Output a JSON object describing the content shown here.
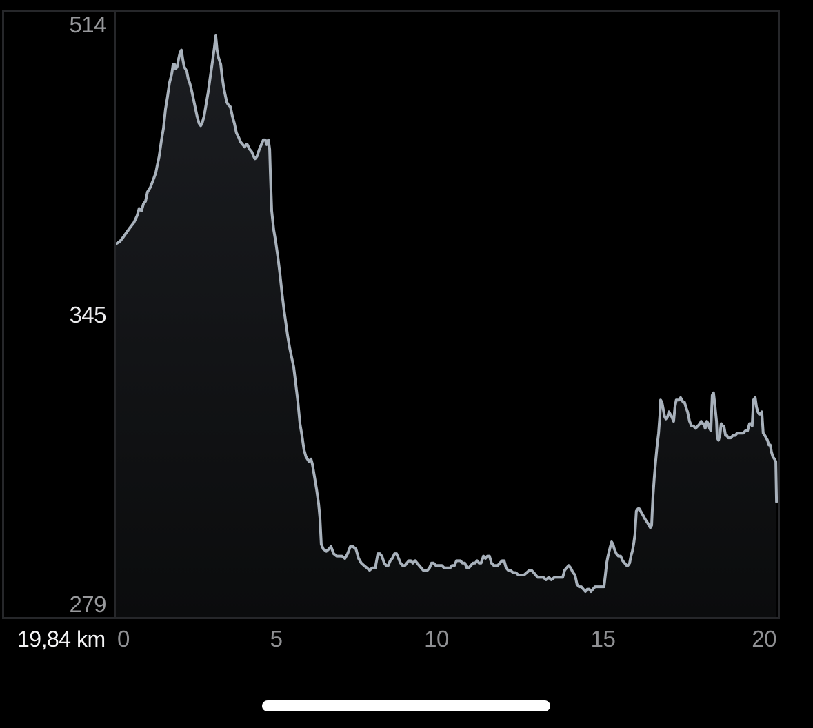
{
  "chart": {
    "y_axis_labels": {
      "max": "514",
      "mid": "345",
      "min": "279"
    },
    "x_ticks": [
      "0",
      "5",
      "10",
      "15",
      "20"
    ],
    "footer": {
      "distance_label": "19,84 km"
    }
  },
  "colors": {
    "background": "#000000",
    "frame": "#26272a",
    "line": "#a8b1bb",
    "fill_top": "#1b1d21",
    "fill_bottom": "#0b0c0d",
    "label_dim": "#98999c",
    "label_bright": "#ececee",
    "tick_label": "#8f9093",
    "distance_text": "#f5f5f6",
    "home_indicator": "#ffffff"
  },
  "chart_data": {
    "type": "area",
    "x_unit": "km",
    "y_unit": "m",
    "x_range": [
      0,
      19.88
    ],
    "y_range": [
      279,
      514
    ],
    "x_tick_values": [
      0,
      5,
      10,
      15,
      20
    ],
    "y_tick_values": [
      514,
      345,
      279
    ],
    "total_distance_km": 19.84,
    "max_elevation_m": 514,
    "mid_label_elevation_m": 345,
    "min_elevation_m": 279,
    "grid": false,
    "legend": false,
    "profile": [
      [
        0.0,
        426
      ],
      [
        0.12,
        427
      ],
      [
        0.23,
        429
      ],
      [
        0.33,
        431
      ],
      [
        0.43,
        433
      ],
      [
        0.54,
        435
      ],
      [
        0.64,
        438
      ],
      [
        0.7,
        441
      ],
      [
        0.77,
        440
      ],
      [
        0.83,
        443
      ],
      [
        0.89,
        444
      ],
      [
        0.95,
        448
      ],
      [
        1.04,
        450
      ],
      [
        1.12,
        453
      ],
      [
        1.2,
        456
      ],
      [
        1.24,
        459
      ],
      [
        1.3,
        463
      ],
      [
        1.37,
        470
      ],
      [
        1.43,
        475
      ],
      [
        1.49,
        483
      ],
      [
        1.55,
        488
      ],
      [
        1.61,
        494
      ],
      [
        1.68,
        498
      ],
      [
        1.72,
        502
      ],
      [
        1.76,
        502
      ],
      [
        1.8,
        500
      ],
      [
        1.84,
        501
      ],
      [
        1.88,
        504
      ],
      [
        1.93,
        507
      ],
      [
        1.97,
        508
      ],
      [
        2.01,
        504
      ],
      [
        2.05,
        501
      ],
      [
        2.09,
        500
      ],
      [
        2.13,
        499
      ],
      [
        2.17,
        496
      ],
      [
        2.22,
        494
      ],
      [
        2.26,
        492
      ],
      [
        2.32,
        488
      ],
      [
        2.38,
        484
      ],
      [
        2.44,
        480
      ],
      [
        2.5,
        477
      ],
      [
        2.55,
        476
      ],
      [
        2.59,
        477
      ],
      [
        2.65,
        480
      ],
      [
        2.71,
        485
      ],
      [
        2.77,
        490
      ],
      [
        2.84,
        497
      ],
      [
        2.88,
        501
      ],
      [
        2.92,
        505
      ],
      [
        2.96,
        509
      ],
      [
        3.0,
        514
      ],
      [
        3.04,
        508
      ],
      [
        3.08,
        505
      ],
      [
        3.15,
        502
      ],
      [
        3.19,
        497
      ],
      [
        3.23,
        493
      ],
      [
        3.27,
        490
      ],
      [
        3.33,
        486
      ],
      [
        3.37,
        485
      ],
      [
        3.44,
        484
      ],
      [
        3.5,
        480
      ],
      [
        3.56,
        477
      ],
      [
        3.62,
        473
      ],
      [
        3.69,
        471
      ],
      [
        3.75,
        469
      ],
      [
        3.81,
        468
      ],
      [
        3.87,
        467
      ],
      [
        3.91,
        468
      ],
      [
        3.95,
        468
      ],
      [
        4.02,
        466
      ],
      [
        4.08,
        465
      ],
      [
        4.14,
        463
      ],
      [
        4.18,
        462
      ],
      [
        4.24,
        463
      ],
      [
        4.31,
        466
      ],
      [
        4.37,
        468
      ],
      [
        4.43,
        470
      ],
      [
        4.49,
        470
      ],
      [
        4.53,
        468
      ],
      [
        4.58,
        470
      ],
      [
        4.62,
        466
      ],
      [
        4.64,
        456
      ],
      [
        4.68,
        440
      ],
      [
        4.74,
        432
      ],
      [
        4.8,
        427
      ],
      [
        4.87,
        420
      ],
      [
        4.93,
        413
      ],
      [
        4.99,
        405
      ],
      [
        5.05,
        398
      ],
      [
        5.11,
        392
      ],
      [
        5.16,
        387
      ],
      [
        5.22,
        382
      ],
      [
        5.28,
        378
      ],
      [
        5.34,
        374
      ],
      [
        5.4,
        367
      ],
      [
        5.47,
        359
      ],
      [
        5.53,
        350
      ],
      [
        5.59,
        345
      ],
      [
        5.65,
        339
      ],
      [
        5.71,
        336
      ],
      [
        5.8,
        334
      ],
      [
        5.86,
        335
      ],
      [
        5.9,
        333
      ],
      [
        5.96,
        328
      ],
      [
        6.03,
        322
      ],
      [
        6.09,
        316
      ],
      [
        6.13,
        310
      ],
      [
        6.17,
        299
      ],
      [
        6.23,
        297
      ],
      [
        6.32,
        296
      ],
      [
        6.4,
        297
      ],
      [
        6.46,
        298
      ],
      [
        6.54,
        295
      ],
      [
        6.63,
        294
      ],
      [
        6.71,
        294
      ],
      [
        6.79,
        294
      ],
      [
        6.88,
        293
      ],
      [
        6.96,
        295
      ],
      [
        7.04,
        298
      ],
      [
        7.12,
        298
      ],
      [
        7.21,
        297
      ],
      [
        7.29,
        293
      ],
      [
        7.37,
        291
      ],
      [
        7.45,
        290
      ],
      [
        7.54,
        289
      ],
      [
        7.62,
        288
      ],
      [
        7.7,
        289
      ],
      [
        7.79,
        289
      ],
      [
        7.87,
        295
      ],
      [
        7.93,
        295
      ],
      [
        7.99,
        294
      ],
      [
        8.06,
        291
      ],
      [
        8.12,
        290
      ],
      [
        8.18,
        290
      ],
      [
        8.24,
        292
      ],
      [
        8.3,
        293
      ],
      [
        8.37,
        295
      ],
      [
        8.43,
        295
      ],
      [
        8.49,
        293
      ],
      [
        8.55,
        291
      ],
      [
        8.61,
        290
      ],
      [
        8.68,
        290
      ],
      [
        8.74,
        291
      ],
      [
        8.8,
        292
      ],
      [
        8.86,
        292
      ],
      [
        8.92,
        291
      ],
      [
        8.99,
        292
      ],
      [
        9.05,
        291
      ],
      [
        9.11,
        290
      ],
      [
        9.17,
        289
      ],
      [
        9.23,
        288
      ],
      [
        9.3,
        288
      ],
      [
        9.36,
        288
      ],
      [
        9.42,
        289
      ],
      [
        9.48,
        291
      ],
      [
        9.54,
        291
      ],
      [
        9.61,
        290
      ],
      [
        9.67,
        290
      ],
      [
        9.73,
        290
      ],
      [
        9.79,
        290
      ],
      [
        9.86,
        289
      ],
      [
        9.92,
        289
      ],
      [
        9.98,
        289
      ],
      [
        10.04,
        289
      ],
      [
        10.1,
        290
      ],
      [
        10.17,
        290
      ],
      [
        10.23,
        292
      ],
      [
        10.29,
        292
      ],
      [
        10.35,
        292
      ],
      [
        10.41,
        291
      ],
      [
        10.48,
        291
      ],
      [
        10.54,
        289
      ],
      [
        10.6,
        289
      ],
      [
        10.66,
        290
      ],
      [
        10.73,
        291
      ],
      [
        10.79,
        291
      ],
      [
        10.85,
        292
      ],
      [
        10.91,
        291
      ],
      [
        10.97,
        291
      ],
      [
        11.04,
        294
      ],
      [
        11.1,
        293
      ],
      [
        11.16,
        294
      ],
      [
        11.22,
        294
      ],
      [
        11.28,
        291
      ],
      [
        11.35,
        290
      ],
      [
        11.41,
        290
      ],
      [
        11.47,
        290
      ],
      [
        11.53,
        291
      ],
      [
        11.6,
        292
      ],
      [
        11.66,
        292
      ],
      [
        11.72,
        289
      ],
      [
        11.78,
        288
      ],
      [
        11.84,
        288
      ],
      [
        11.93,
        287
      ],
      [
        12.01,
        287
      ],
      [
        12.09,
        286
      ],
      [
        12.17,
        286
      ],
      [
        12.26,
        286
      ],
      [
        12.34,
        287
      ],
      [
        12.42,
        288
      ],
      [
        12.48,
        288
      ],
      [
        12.55,
        287
      ],
      [
        12.61,
        286
      ],
      [
        12.67,
        285
      ],
      [
        12.75,
        285
      ],
      [
        12.84,
        285
      ],
      [
        12.92,
        284
      ],
      [
        13.0,
        285
      ],
      [
        13.08,
        284
      ],
      [
        13.17,
        285
      ],
      [
        13.23,
        285
      ],
      [
        13.29,
        285
      ],
      [
        13.35,
        285
      ],
      [
        13.42,
        285
      ],
      [
        13.48,
        288
      ],
      [
        13.54,
        289
      ],
      [
        13.6,
        290
      ],
      [
        13.66,
        289
      ],
      [
        13.73,
        287
      ],
      [
        13.79,
        286
      ],
      [
        13.85,
        282
      ],
      [
        13.91,
        281
      ],
      [
        13.98,
        281
      ],
      [
        14.04,
        280
      ],
      [
        14.1,
        279
      ],
      [
        14.16,
        280
      ],
      [
        14.22,
        280
      ],
      [
        14.27,
        279
      ],
      [
        14.33,
        280
      ],
      [
        14.39,
        281
      ],
      [
        14.45,
        281
      ],
      [
        14.53,
        281
      ],
      [
        14.6,
        281
      ],
      [
        14.66,
        281
      ],
      [
        14.7,
        286
      ],
      [
        14.74,
        291
      ],
      [
        14.78,
        294
      ],
      [
        14.85,
        298
      ],
      [
        14.89,
        300
      ],
      [
        14.93,
        299
      ],
      [
        14.97,
        297
      ],
      [
        15.03,
        295
      ],
      [
        15.09,
        294
      ],
      [
        15.16,
        294
      ],
      [
        15.22,
        292
      ],
      [
        15.28,
        291
      ],
      [
        15.34,
        290
      ],
      [
        15.38,
        290
      ],
      [
        15.43,
        291
      ],
      [
        15.47,
        294
      ],
      [
        15.51,
        296
      ],
      [
        15.55,
        299
      ],
      [
        15.59,
        303
      ],
      [
        15.63,
        313
      ],
      [
        15.68,
        314
      ],
      [
        15.72,
        314
      ],
      [
        15.76,
        313
      ],
      [
        15.8,
        312
      ],
      [
        15.84,
        311
      ],
      [
        15.88,
        310
      ],
      [
        15.92,
        309
      ],
      [
        15.97,
        308
      ],
      [
        16.01,
        307
      ],
      [
        16.05,
        306
      ],
      [
        16.09,
        307
      ],
      [
        16.11,
        313
      ],
      [
        16.13,
        319
      ],
      [
        16.17,
        327
      ],
      [
        16.21,
        334
      ],
      [
        16.25,
        340
      ],
      [
        16.3,
        346
      ],
      [
        16.34,
        354
      ],
      [
        16.36,
        360
      ],
      [
        16.4,
        359
      ],
      [
        16.44,
        356
      ],
      [
        16.48,
        353
      ],
      [
        16.52,
        352
      ],
      [
        16.57,
        353
      ],
      [
        16.61,
        355
      ],
      [
        16.65,
        354
      ],
      [
        16.69,
        353
      ],
      [
        16.75,
        351
      ],
      [
        16.79,
        357
      ],
      [
        16.83,
        360
      ],
      [
        16.88,
        360
      ],
      [
        16.92,
        360
      ],
      [
        16.96,
        361
      ],
      [
        17.0,
        360
      ],
      [
        17.04,
        359
      ],
      [
        17.08,
        359
      ],
      [
        17.12,
        357
      ],
      [
        17.17,
        355
      ],
      [
        17.23,
        351
      ],
      [
        17.29,
        349
      ],
      [
        17.35,
        349
      ],
      [
        17.41,
        348
      ],
      [
        17.48,
        349
      ],
      [
        17.54,
        350
      ],
      [
        17.58,
        351
      ],
      [
        17.62,
        350
      ],
      [
        17.66,
        350
      ],
      [
        17.7,
        348
      ],
      [
        17.75,
        351
      ],
      [
        17.79,
        350
      ],
      [
        17.83,
        348
      ],
      [
        17.87,
        347
      ],
      [
        17.91,
        362
      ],
      [
        17.95,
        363
      ],
      [
        17.99,
        358
      ],
      [
        18.04,
        351
      ],
      [
        18.06,
        344
      ],
      [
        18.1,
        343
      ],
      [
        18.14,
        345
      ],
      [
        18.18,
        350
      ],
      [
        18.22,
        349
      ],
      [
        18.26,
        349
      ],
      [
        18.31,
        345
      ],
      [
        18.35,
        345
      ],
      [
        18.39,
        344
      ],
      [
        18.43,
        344
      ],
      [
        18.47,
        344
      ],
      [
        18.53,
        345
      ],
      [
        18.6,
        345
      ],
      [
        18.66,
        346
      ],
      [
        18.72,
        346
      ],
      [
        18.78,
        346
      ],
      [
        18.84,
        346
      ],
      [
        18.91,
        347
      ],
      [
        18.97,
        347
      ],
      [
        19.03,
        350
      ],
      [
        19.07,
        350
      ],
      [
        19.11,
        349
      ],
      [
        19.15,
        360
      ],
      [
        19.2,
        361
      ],
      [
        19.24,
        357
      ],
      [
        19.28,
        355
      ],
      [
        19.32,
        354
      ],
      [
        19.36,
        354
      ],
      [
        19.4,
        355
      ],
      [
        19.44,
        346
      ],
      [
        19.49,
        345
      ],
      [
        19.53,
        344
      ],
      [
        19.57,
        343
      ],
      [
        19.61,
        341
      ],
      [
        19.65,
        341
      ],
      [
        19.69,
        338
      ],
      [
        19.73,
        336
      ],
      [
        19.78,
        335
      ],
      [
        19.82,
        334
      ],
      [
        19.84,
        317
      ]
    ]
  }
}
